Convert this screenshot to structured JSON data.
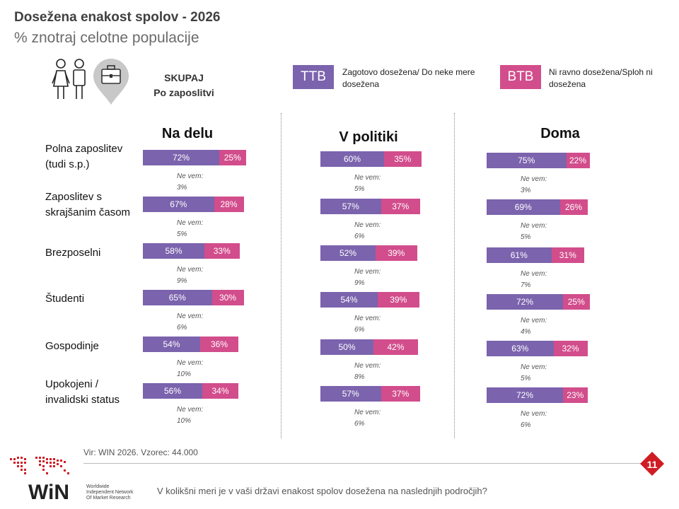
{
  "header": {
    "title": "Dosežena enakost spolov - 2026",
    "subtitle": "% znotraj celotne populacije",
    "segment_label_line1": "SKUPAJ",
    "segment_label_line2": "Po zaposlitvi"
  },
  "legend": {
    "ttb_label": "TTB",
    "ttb_text_line1": "Zagotovo dosežena/ Do neke mere",
    "ttb_text_line2": "dosežena",
    "btb_label": "BTB",
    "btb_text_line1": "Ni ravno dosežena/Sploh ni",
    "btb_text_line2": "dosežena",
    "ttb_color": "#7b63ad",
    "btb_color": "#d24d8c"
  },
  "chart_data": {
    "type": "bar",
    "categories": [
      "Polna zaposlitev (tudi s.p.)",
      "Zaposlitev s skrajšanim časom",
      "Brezposelni",
      "Študenti",
      "Gospodinje",
      "Upokojeni / invalidski status"
    ],
    "category_lines": [
      [
        "Polna zaposlitev",
        "(tudi s.p.)"
      ],
      [
        "Zaposlitev s",
        "skrajšanim časom"
      ],
      [
        "Brezposelni"
      ],
      [
        "Študenti"
      ],
      [
        "Gospodinje"
      ],
      [
        "Upokojeni /",
        "invalidski status"
      ]
    ],
    "dont_know_label": "Ne vem:",
    "panels": [
      {
        "title": "Na delu",
        "ttb": [
          72,
          67,
          58,
          65,
          54,
          56
        ],
        "btb": [
          25,
          28,
          33,
          30,
          36,
          34
        ],
        "dont_know": [
          "3%",
          "5%",
          "9%",
          "6%",
          "10%",
          "10%"
        ]
      },
      {
        "title": "V politiki",
        "ttb": [
          60,
          57,
          52,
          54,
          50,
          57
        ],
        "btb": [
          35,
          37,
          39,
          39,
          42,
          37
        ],
        "dont_know": [
          "5%",
          "6%",
          "9%",
          "6%",
          "8%",
          "6%"
        ]
      },
      {
        "title": "Doma",
        "ttb": [
          75,
          69,
          61,
          72,
          63,
          72
        ],
        "btb": [
          22,
          26,
          31,
          25,
          32,
          23
        ],
        "dont_know": [
          "3%",
          "5%",
          "7%",
          "4%",
          "5%",
          "6%"
        ]
      }
    ]
  },
  "footer": {
    "source": "Vir: WIN 2026.  Vzorec: 44.000",
    "question": "V kolikšni meri je v vaši državi enakost spolov dosežena na naslednjih področjih?",
    "page_number": "11",
    "logo_text": "WiN",
    "logo_sub1": "Worldwide",
    "logo_sub2": "Independent Network",
    "logo_sub3": "Of Market Research"
  }
}
